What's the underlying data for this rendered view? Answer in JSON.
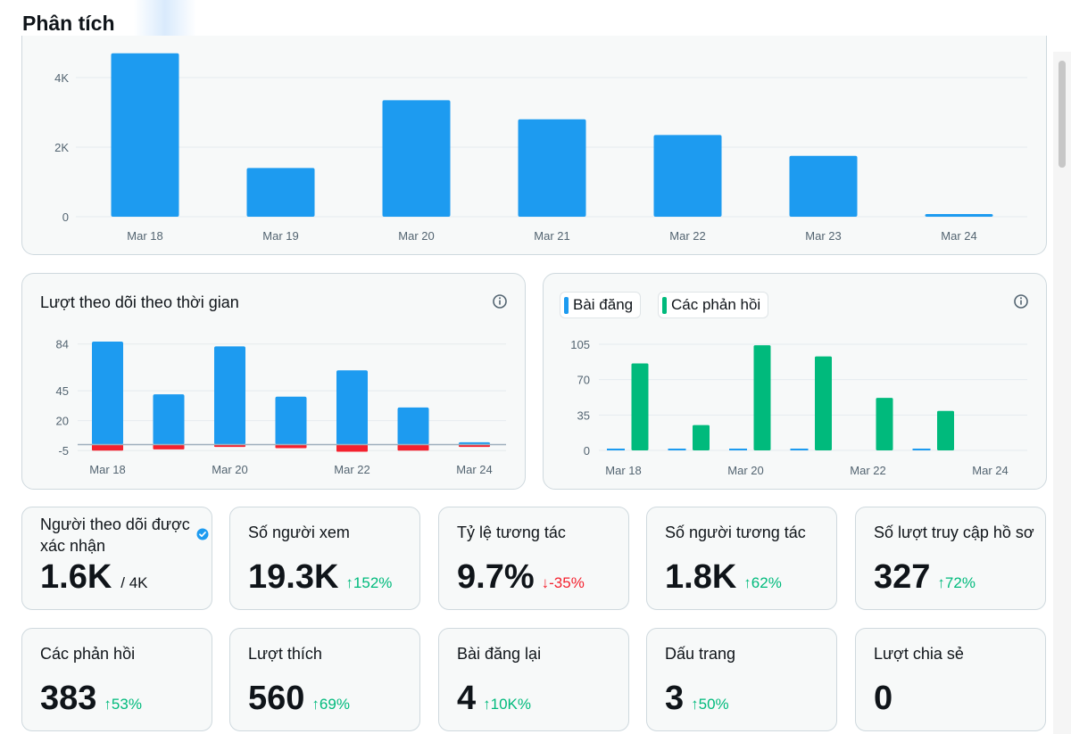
{
  "page": {
    "title": "Phân tích"
  },
  "impressions_chart": {
    "chart_data": {
      "type": "bar",
      "categories": [
        "Mar 18",
        "Mar 19",
        "Mar 20",
        "Mar 21",
        "Mar 22",
        "Mar 23",
        "Mar 24"
      ],
      "values": [
        4700,
        1400,
        3350,
        2800,
        2350,
        1750,
        60
      ],
      "ylim": [
        0,
        4000
      ],
      "yticks": [
        "0",
        "2K",
        "4K"
      ],
      "color": "#1d9bf0"
    }
  },
  "followers_chart": {
    "title": "Lượt theo dõi theo thời gian",
    "chart_data": {
      "type": "bar",
      "categories": [
        "Mar 18",
        "Mar 19",
        "Mar 20",
        "Mar 21",
        "Mar 22",
        "Mar 23",
        "Mar 24"
      ],
      "x_tick_labels": [
        "Mar 18",
        "Mar 20",
        "Mar 22",
        "Mar 24"
      ],
      "series": [
        {
          "values": [
            86,
            42,
            82,
            40,
            62,
            31,
            2
          ],
          "color": "#1d9bf0"
        },
        {
          "values": [
            -5,
            -4,
            -2,
            -3,
            -6,
            -5,
            -2
          ],
          "color": "#f4212e"
        }
      ],
      "ylim": [
        -5,
        84
      ],
      "yticks": [
        "84",
        "45",
        "20",
        "-5"
      ]
    }
  },
  "posts_chart": {
    "legend": [
      {
        "label": "Bài đăng",
        "color": "#1d9bf0"
      },
      {
        "label": "Các phản hồi",
        "color": "#00ba7c"
      }
    ],
    "chart_data": {
      "type": "bar",
      "categories": [
        "Mar 18",
        "Mar 19",
        "Mar 20",
        "Mar 21",
        "Mar 22",
        "Mar 23",
        "Mar 24"
      ],
      "x_tick_labels": [
        "Mar 18",
        "Mar 20",
        "Mar 22",
        "Mar 24"
      ],
      "series": [
        {
          "name": "Bài đăng",
          "values": [
            1,
            1,
            1,
            1,
            0,
            1,
            0
          ]
        },
        {
          "name": "Các phản hồi",
          "values": [
            86,
            25,
            104,
            93,
            52,
            39,
            0
          ]
        }
      ],
      "ylim": [
        0,
        105
      ],
      "yticks": [
        "105",
        "70",
        "35",
        "0"
      ]
    }
  },
  "stats": [
    {
      "label": "Người theo dõi được xác nhận",
      "value": "1.6K",
      "sub": "/ 4K",
      "verified": true
    },
    {
      "label": "Số người xem",
      "value": "19.3K",
      "delta": "152%",
      "direction": "up"
    },
    {
      "label": "Tỷ lệ tương tác",
      "value": "9.7%",
      "delta": "-35%",
      "direction": "down"
    },
    {
      "label": "Số người tương tác",
      "value": "1.8K",
      "delta": "62%",
      "direction": "up"
    },
    {
      "label": "Số lượt truy cập hồ sơ",
      "value": "327",
      "delta": "72%",
      "direction": "up"
    },
    {
      "label": "Các phản hồi",
      "value": "383",
      "delta": "53%",
      "direction": "up"
    },
    {
      "label": "Lượt thích",
      "value": "560",
      "delta": "69%",
      "direction": "up"
    },
    {
      "label": "Bài đăng lại",
      "value": "4",
      "delta": "10K%",
      "direction": "up"
    },
    {
      "label": "Dấu trang",
      "value": "3",
      "delta": "50%",
      "direction": "up"
    },
    {
      "label": "Lượt chia sẻ",
      "value": "0"
    }
  ],
  "icons": {
    "up": "↑",
    "down": "↓",
    "info": "info-icon",
    "verified": "verified-badge-icon"
  }
}
